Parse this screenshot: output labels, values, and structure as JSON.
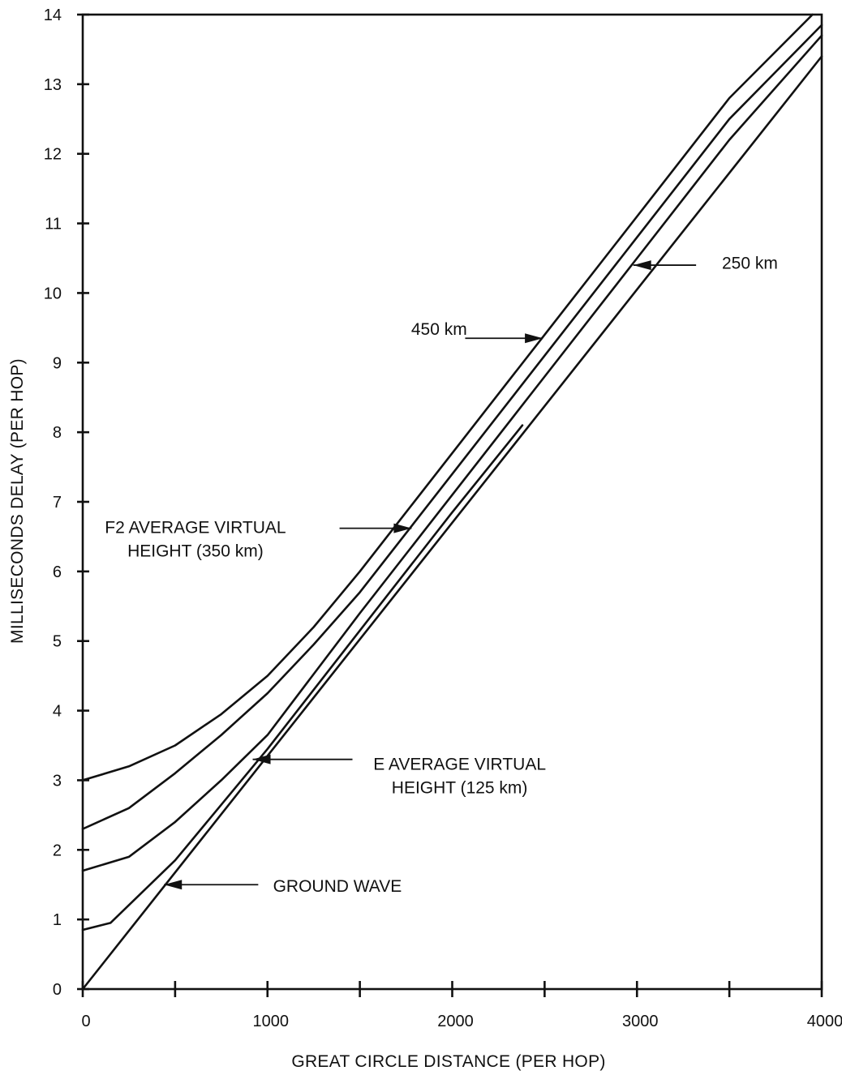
{
  "chart_data": {
    "type": "line",
    "title": "",
    "xlabel": "GREAT CIRCLE DISTANCE (PER HOP)",
    "ylabel": "MILLISECONDS DELAY (PER HOP)",
    "xlim": [
      0,
      4000
    ],
    "ylim": [
      0,
      14
    ],
    "x_ticks": [
      0,
      1000,
      2000,
      3000,
      4000
    ],
    "x_minor_ticks": [
      500,
      1500,
      2500,
      3500
    ],
    "y_ticks": [
      0,
      1,
      2,
      3,
      4,
      5,
      6,
      7,
      8,
      9,
      10,
      11,
      12,
      13,
      14
    ],
    "grid": false,
    "legend": "none",
    "series": [
      {
        "key": "h450",
        "x": [
          0,
          250,
          500,
          750,
          1000,
          1250,
          1500,
          2000,
          2500,
          3000,
          3500,
          3950
        ],
        "y": [
          3.0,
          3.2,
          3.5,
          3.95,
          4.5,
          5.2,
          6.0,
          7.7,
          9.4,
          11.1,
          12.8,
          14.0
        ]
      },
      {
        "key": "h350",
        "x": [
          0,
          250,
          500,
          750,
          1000,
          1250,
          1500,
          2000,
          2500,
          3000,
          3500,
          4000
        ],
        "y": [
          2.3,
          2.6,
          3.1,
          3.65,
          4.25,
          4.95,
          5.7,
          7.4,
          9.1,
          10.8,
          12.5,
          13.85
        ]
      },
      {
        "key": "h250",
        "x": [
          0,
          250,
          500,
          750,
          1000,
          1500,
          2000,
          2500,
          3000,
          3500,
          4000
        ],
        "y": [
          1.7,
          1.9,
          2.4,
          3.0,
          3.65,
          5.4,
          7.1,
          8.8,
          10.5,
          12.2,
          13.7
        ]
      },
      {
        "key": "h125",
        "x": [
          0,
          150,
          500,
          1000,
          1500,
          2000,
          2380
        ],
        "y": [
          0.85,
          0.95,
          1.85,
          3.45,
          5.15,
          6.85,
          8.1
        ]
      },
      {
        "key": "ground",
        "x": [
          0,
          4000
        ],
        "y": [
          0,
          13.4
        ]
      }
    ],
    "annotations": [
      {
        "lines": [
          "450 km"
        ],
        "anchor": "end",
        "text_x": 2080,
        "text_y": 9.4,
        "tail_x": 2070,
        "tail_y": 9.35,
        "tip_x": 2490,
        "tip_y": 9.35
      },
      {
        "lines": [
          "250 km"
        ],
        "anchor": "start",
        "text_x": 3460,
        "text_y": 10.35,
        "tail_x": 3320,
        "tail_y": 10.4,
        "tip_x": 2980,
        "tip_y": 10.4
      },
      {
        "lines": [
          "F2 AVERAGE VIRTUAL",
          "HEIGHT (350 km)"
        ],
        "anchor": "middle",
        "text_x": 610,
        "text_y": 6.55,
        "tail_x": 1390,
        "tail_y": 6.62,
        "tip_x": 1780,
        "tip_y": 6.62
      },
      {
        "lines": [
          "E AVERAGE VIRTUAL",
          "HEIGHT (125 km)"
        ],
        "anchor": "middle",
        "text_x": 2040,
        "text_y": 3.15,
        "tail_x": 1460,
        "tail_y": 3.3,
        "tip_x": 920,
        "tip_y": 3.3
      },
      {
        "lines": [
          "GROUND  WAVE"
        ],
        "anchor": "start",
        "text_x": 1030,
        "text_y": 1.4,
        "tail_x": 950,
        "tail_y": 1.5,
        "tip_x": 440,
        "tip_y": 1.5
      }
    ]
  }
}
